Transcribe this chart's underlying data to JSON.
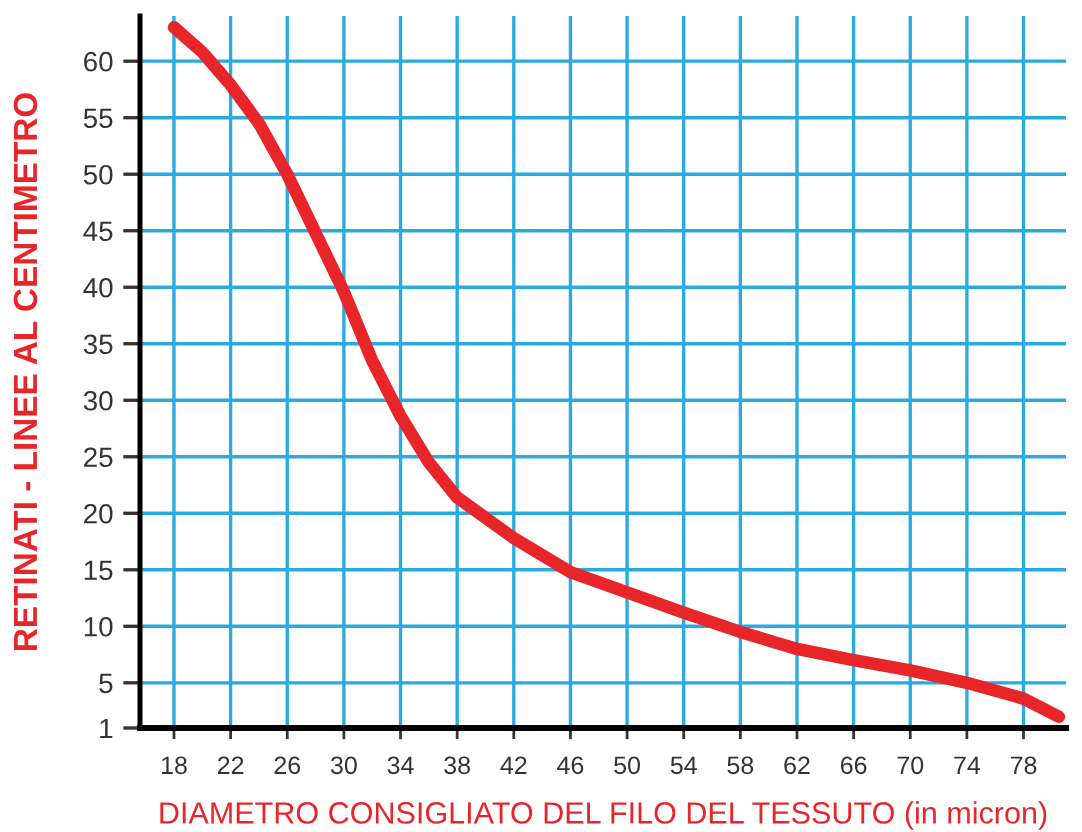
{
  "chart_data": {
    "type": "line",
    "xlabel": "DIAMETRO CONSIGLIATO DEL FILO DEL TESSUTO (in micron)",
    "ylabel": "RETINATI - LINEE AL CENTIMETRO",
    "series": [
      {
        "color": "#e8262a",
        "x": [
          18,
          20,
          22,
          24,
          26,
          28,
          30,
          32,
          34,
          36,
          38,
          42,
          46,
          50,
          54,
          58,
          62,
          66,
          70,
          74,
          78,
          80.5
        ],
        "values": [
          63,
          60.8,
          57.9,
          54.5,
          50,
          44.8,
          39.6,
          33.5,
          28.6,
          24.5,
          21.4,
          17.8,
          14.8,
          13,
          11.2,
          9.5,
          8,
          7,
          6.1,
          5,
          3.6,
          2
        ]
      }
    ],
    "xlim": [
      15.6,
      81
    ],
    "xticks": [
      18,
      22,
      26,
      30,
      34,
      38,
      42,
      46,
      50,
      54,
      58,
      62,
      66,
      70,
      74,
      78
    ],
    "ylim": [
      1,
      64
    ],
    "yticks": [
      1,
      5,
      10,
      15,
      20,
      25,
      30,
      35,
      40,
      45,
      50,
      55,
      60
    ],
    "grid": true,
    "marker": "none",
    "line_style": "solid"
  }
}
